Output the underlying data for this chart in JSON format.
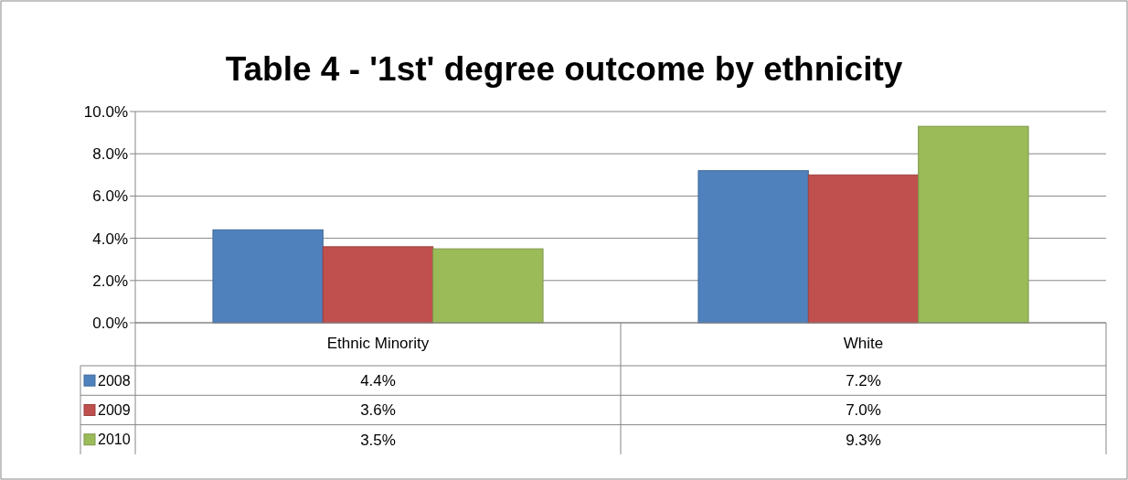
{
  "chart_data": {
    "type": "bar",
    "title": "Table 4 - '1st' degree outcome by ethnicity",
    "categories": [
      "Ethnic Minority",
      "White"
    ],
    "series": [
      {
        "name": "2008",
        "color": "#4f81bd",
        "values": [
          4.4,
          7.2
        ],
        "value_labels": [
          "4.4%",
          "7.2%"
        ]
      },
      {
        "name": "2009",
        "color": "#c0504d",
        "values": [
          3.6,
          7.0
        ],
        "value_labels": [
          "3.6%",
          "7.0%"
        ]
      },
      {
        "name": "2010",
        "color": "#9bbb59",
        "values": [
          3.5,
          9.3
        ],
        "value_labels": [
          "3.5%",
          "9.3%"
        ]
      }
    ],
    "ylim": [
      0,
      10
    ],
    "yticks": [
      {
        "value": 0,
        "label": "0.0%"
      },
      {
        "value": 2,
        "label": "2.0%"
      },
      {
        "value": 4,
        "label": "4.0%"
      },
      {
        "value": 6,
        "label": "6.0%"
      },
      {
        "value": 8,
        "label": "8.0%"
      },
      {
        "value": 10,
        "label": "10.0%"
      }
    ],
    "grid": "y",
    "legend": "bottom"
  }
}
